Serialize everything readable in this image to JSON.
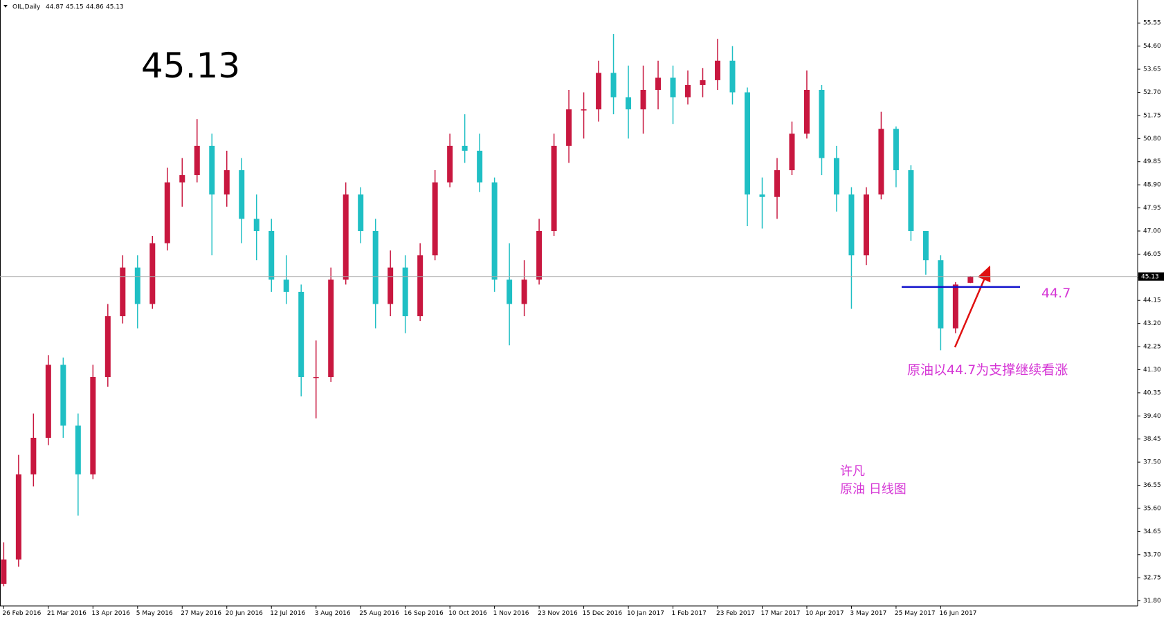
{
  "chart_data": {
    "type": "candlestick",
    "header": {
      "symbol": "OIL,Daily",
      "open": 44.87,
      "high": 45.15,
      "low": 44.86,
      "close": 45.13
    },
    "support": 44.7,
    "annotation": "原油以44.7为支撑继续看涨",
    "author": "许凡",
    "caption": "原油 日线图",
    "up_color": "#c8173f",
    "down_color": "#1fbfc4",
    "support_color": "#1010cc",
    "ylim": [
      31.59,
      56.41
    ],
    "yticks": [
      {
        "value": 31.8,
        "label": "31.80"
      },
      32.75,
      {
        "value": 33.7,
        "label": "33.70"
      },
      34.65,
      {
        "value": 35.6,
        "label": "35.60"
      },
      36.55,
      {
        "value": 37.5,
        "label": "37.50"
      },
      38.45,
      {
        "value": 39.4,
        "label": "39.40"
      },
      40.35,
      {
        "value": 41.3,
        "label": "41.30"
      },
      42.25,
      {
        "value": 43.2,
        "label": "43.20"
      },
      44.15,
      {
        "value": 45.1,
        "label": "45.10"
      },
      46.05,
      {
        "value": 47.0,
        "label": "47.00"
      },
      47.95,
      {
        "value": 48.9,
        "label": "48.90"
      },
      49.85,
      {
        "value": 50.8,
        "label": "50.80"
      },
      51.75,
      {
        "value": 52.7,
        "label": "52.70"
      },
      53.65,
      {
        "value": 54.6,
        "label": "54.60"
      },
      55.55
    ],
    "categories": [
      "26 Feb 2016",
      null,
      null,
      "21 Mar 2016",
      null,
      null,
      "13 Apr 2016",
      null,
      null,
      "5 May 2016",
      null,
      null,
      "27 May 2016",
      null,
      null,
      "20 Jun 2016",
      null,
      null,
      "12 Jul 2016",
      null,
      null,
      "3 Aug 2016",
      null,
      null,
      "25 Aug 2016",
      null,
      null,
      "16 Sep 2016",
      null,
      null,
      "10 Oct 2016",
      null,
      null,
      "1 Nov 2016",
      null,
      null,
      "23 Nov 2016",
      null,
      null,
      "15 Dec 2016",
      null,
      null,
      "10 Jan 2017",
      null,
      null,
      "1 Feb 2017",
      null,
      null,
      "23 Feb 2017",
      null,
      null,
      "17 Mar 2017",
      null,
      null,
      "10 Apr 2017",
      null,
      null,
      "3 May 2017",
      null,
      null,
      "25 May 2017",
      null,
      null,
      "16 Jun 2017",
      null,
      null
    ],
    "open": [
      32.5,
      33.5,
      37,
      38.5,
      41.5,
      39,
      37,
      41,
      43.5,
      45.5,
      44,
      46.5,
      49,
      49.3,
      50.5,
      48.5,
      49.5,
      47.5,
      47,
      45,
      44.5,
      41,
      41,
      45,
      48.5,
      47,
      44,
      45.5,
      43.5,
      46,
      49,
      50.5,
      50.3,
      49,
      45,
      44,
      45,
      47,
      50.5,
      52,
      52,
      53.5,
      52.5,
      52,
      52.8,
      53.3,
      52.5,
      53,
      53.2,
      54,
      52.7,
      48.5,
      48.4,
      49.5,
      51,
      52.8,
      50,
      48.5,
      46,
      48.5,
      51.2,
      49.5,
      47,
      45.8,
      43,
      44.87
    ],
    "high": [
      34.2,
      37.8,
      39.5,
      41.9,
      41.8,
      39.5,
      41.5,
      44,
      46,
      46,
      46.8,
      49.6,
      50,
      51.6,
      51,
      50.3,
      50,
      48.5,
      47.5,
      46,
      44.8,
      42.5,
      45.5,
      49,
      48.8,
      47.5,
      46.2,
      46,
      46.5,
      49.5,
      51,
      51.8,
      51,
      49.2,
      46.5,
      45.8,
      47.5,
      51,
      52.8,
      52.7,
      54,
      55.1,
      53.8,
      53.8,
      54,
      53.8,
      53.6,
      53.7,
      54.9,
      54.6,
      52.9,
      49.2,
      50,
      51.5,
      53.6,
      53,
      50.5,
      48.8,
      48.8,
      51.9,
      51.3,
      49.7,
      46.8,
      46,
      44.9,
      45.15
    ],
    "low": [
      32.4,
      33.2,
      36.5,
      38.2,
      38.5,
      35.3,
      36.8,
      40.6,
      43.2,
      43,
      43.8,
      46.2,
      48,
      49,
      46,
      48,
      46.5,
      45.8,
      44.5,
      44,
      40.2,
      39.3,
      40.8,
      44.8,
      46.5,
      43,
      43.5,
      42.8,
      43.3,
      45.8,
      48.8,
      49.8,
      48.6,
      44.5,
      42.3,
      43.5,
      44.8,
      46.8,
      49.8,
      50.8,
      51.5,
      51.8,
      50.8,
      51,
      52,
      51.4,
      52.2,
      52.5,
      52.8,
      52.2,
      47.2,
      47.1,
      47.5,
      49.3,
      50.8,
      49.3,
      47.8,
      43.8,
      45.6,
      48.3,
      48.8,
      46.6,
      45.2,
      42.1,
      42.8,
      44.86
    ],
    "close": [
      33.5,
      37,
      38.5,
      41.5,
      39,
      37,
      41,
      43.5,
      45.5,
      44,
      46.5,
      49,
      49.3,
      50.5,
      48.5,
      49.5,
      47.5,
      47,
      45,
      44.5,
      41,
      41,
      45,
      48.5,
      47,
      44,
      45.5,
      43.5,
      46,
      49,
      50.5,
      50.3,
      49,
      45,
      44,
      45,
      47,
      50.5,
      52,
      52,
      53.5,
      52.5,
      52,
      52.8,
      53.3,
      52.5,
      53,
      53.2,
      54,
      52.7,
      48.5,
      48.4,
      49.5,
      51,
      52.8,
      50,
      48.5,
      46,
      48.5,
      51.2,
      49.5,
      47,
      45.8,
      43,
      44.8,
      45.13
    ]
  }
}
